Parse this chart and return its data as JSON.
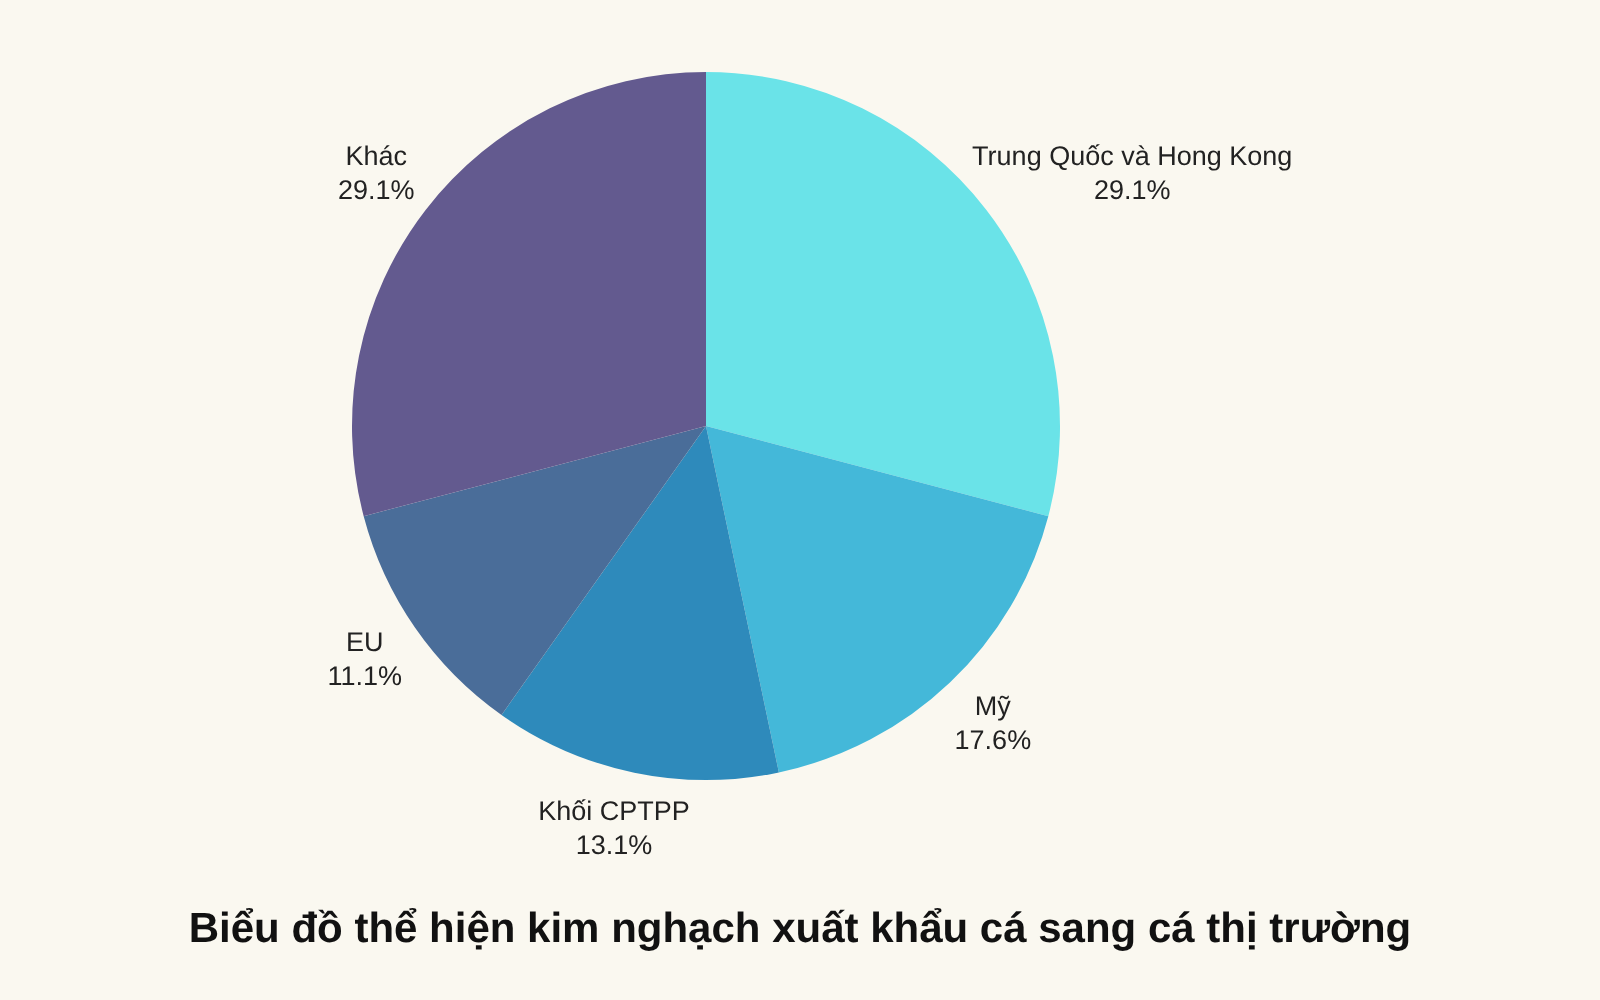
{
  "chart_data": {
    "type": "pie",
    "title": "Biểu đồ thể hiện kim nghạch xuất khẩu cá sang cá thị trường",
    "categories": [
      "Trung Quốc và Hong Kong",
      "Mỹ",
      "Khối CPTPP",
      "EU",
      "Khác"
    ],
    "values": [
      29.1,
      17.6,
      13.1,
      11.1,
      29.1
    ],
    "value_labels": [
      "29.1%",
      "17.6%",
      "13.1%",
      "11.1%",
      "29.1%"
    ],
    "colors": [
      "#6ae3e8",
      "#44b8d9",
      "#2e8abb",
      "#4a6d99",
      "#635a8f"
    ]
  }
}
